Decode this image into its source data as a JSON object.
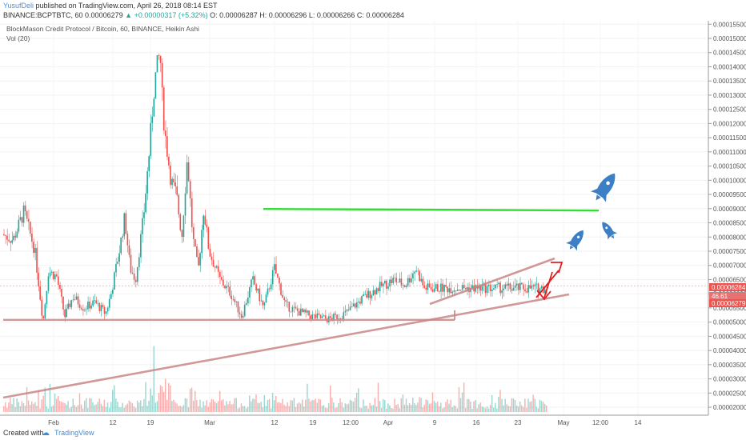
{
  "header": {
    "username": "YusufDeli",
    "published_text": "published on TradingView.com, April 26, 2018 08:14 EST",
    "symbol_line": "BINANCE:BCPTBTC, 60",
    "price": "0.00006279",
    "change_arrow": "▲",
    "change": "+0.00000317 (+5.32%)",
    "open": "O: 0.00006287",
    "high": "H: 0.00006296",
    "low": "L: 0.00006266",
    "close": "C: 0.00006284"
  },
  "legend": {
    "title": "BlockMason Credit Protocol / Bitcoin, 60, BINANCE, Heikin Ashi",
    "indicator": "Vol (20)"
  },
  "footer": {
    "created_with": "Created with",
    "brand": "TradingView"
  },
  "colors": {
    "up": "#26a69a",
    "down": "#ef5350",
    "support": "#c98787",
    "resistance": "#33dd33",
    "arrow": "#e02020",
    "rocket": "#3c7fc4",
    "price_tag": "#e57373"
  },
  "chart_data": {
    "type": "candlestick",
    "title": "BlockMason Credit Protocol / Bitcoin, 60, BINANCE, Heikin Ashi",
    "y_axis": {
      "range": [
        1.72e-05,
        0.0001562
      ],
      "ticks": [
        "0.00015500",
        "0.00015000",
        "0.00014500",
        "0.00014000",
        "0.00013500",
        "0.00013000",
        "0.00012500",
        "0.00012000",
        "0.00011500",
        "0.00011000",
        "0.00010500",
        "0.00010000",
        "0.00009500",
        "0.00009000",
        "0.00008500",
        "0.00008000",
        "0.00007500",
        "0.00007000",
        "0.00006500",
        "0.00006000",
        "0.00005500",
        "0.00005000",
        "0.00004500",
        "0.00004000",
        "0.00003500",
        "0.00003000",
        "0.00002500",
        "0.00002000"
      ]
    },
    "x_axis": {
      "ticks": [
        "Feb",
        "12",
        "19",
        "Mar",
        "12",
        "19",
        "12:00",
        "Apr",
        "9",
        "16",
        "23",
        "May",
        "12:00",
        "14"
      ]
    },
    "price_tags": [
      {
        "label": "0.00006284",
        "value": 6.284e-05
      },
      {
        "label": "46.61",
        "value": 5.99e-05
      },
      {
        "label": "0.00006279",
        "value": 5.72e-05
      }
    ],
    "price_path": [
      [
        0,
        8.1e-05
      ],
      [
        0.02,
        7.9e-05
      ],
      [
        0.04,
        8.9e-05
      ],
      [
        0.06,
        7.5e-05
      ],
      [
        0.075,
        5e-05
      ],
      [
        0.085,
        6.8e-05
      ],
      [
        0.1,
        6.6e-05
      ],
      [
        0.115,
        5.2e-05
      ],
      [
        0.13,
        5.9e-05
      ],
      [
        0.15,
        5.5e-05
      ],
      [
        0.17,
        5.7e-05
      ],
      [
        0.19,
        5.3e-05
      ],
      [
        0.2,
        6e-05
      ],
      [
        0.215,
        7.5e-05
      ],
      [
        0.225,
        8.7e-05
      ],
      [
        0.235,
        6.9e-05
      ],
      [
        0.245,
        6.5e-05
      ],
      [
        0.26,
        8.8e-05
      ],
      [
        0.27,
        0.00011
      ],
      [
        0.28,
        0.000135
      ],
      [
        0.29,
        0.000145
      ],
      [
        0.295,
        0.000125
      ],
      [
        0.3,
        0.000115
      ],
      [
        0.31,
        0.0001
      ],
      [
        0.32,
        9.5e-05
      ],
      [
        0.33,
        8e-05
      ],
      [
        0.34,
        0.000108
      ],
      [
        0.35,
        8e-05
      ],
      [
        0.36,
        6.8e-05
      ],
      [
        0.37,
        9e-05
      ],
      [
        0.38,
        7.5e-05
      ],
      [
        0.4,
        6.5e-05
      ],
      [
        0.42,
        6e-05
      ],
      [
        0.44,
        5.2e-05
      ],
      [
        0.46,
        6.5e-05
      ],
      [
        0.48,
        5.5e-05
      ],
      [
        0.5,
        6.9e-05
      ],
      [
        0.52,
        5.6e-05
      ],
      [
        0.54,
        5.4e-05
      ],
      [
        0.57,
        5.2e-05
      ],
      [
        0.6,
        5.1e-05
      ],
      [
        0.63,
        5.3e-05
      ],
      [
        0.66,
        5.8e-05
      ],
      [
        0.69,
        6.2e-05
      ],
      [
        0.72,
        6.5e-05
      ],
      [
        0.74,
        6.3e-05
      ],
      [
        0.76,
        6.9e-05
      ],
      [
        0.775,
        6.2e-05
      ]
    ],
    "lines": {
      "resistance_level": 8.99e-05,
      "support_level": 5.08e-05
    },
    "volume_series": "Vol (20)"
  }
}
